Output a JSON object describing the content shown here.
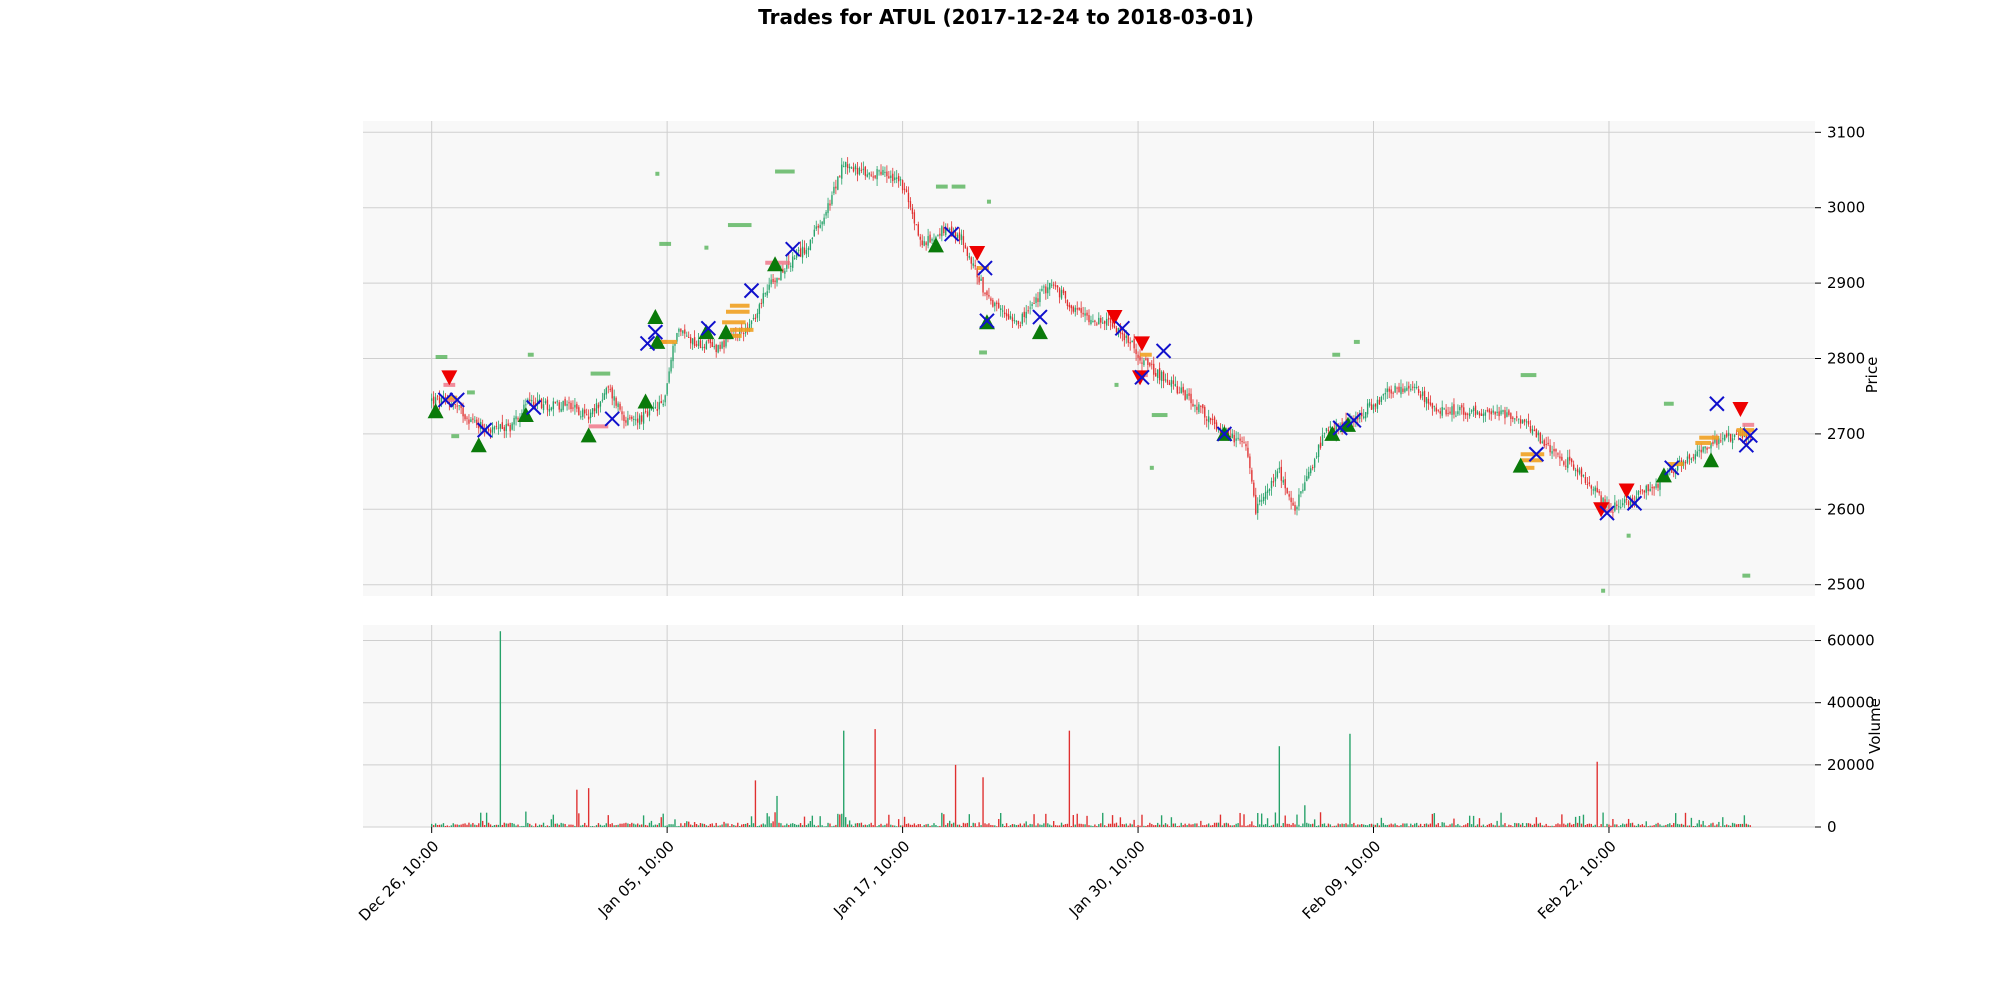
{
  "chart_data": {
    "type": "candlestick",
    "title": "Trades for ATUL (2017-12-24 to 2018-03-01)",
    "price_axis": {
      "label": "Price",
      "side": "right",
      "ylim": [
        2485,
        3115
      ],
      "ticks": [
        2500,
        2600,
        2700,
        2800,
        2900,
        3000,
        3100
      ]
    },
    "volume_axis": {
      "label": "Volume",
      "side": "right",
      "ylim": [
        0,
        65000
      ],
      "ticks": [
        0,
        20000,
        40000,
        60000
      ],
      "tick_labels": [
        "0",
        "20000",
        "40000",
        "60000"
      ]
    },
    "x_ticks": [
      {
        "label": "Dec 26, 10:00",
        "index": 0
      },
      {
        "label": "Jan 05, 10:00",
        "index": 120
      },
      {
        "label": "Jan 17, 10:00",
        "index": 240
      },
      {
        "label": "Jan 30, 10:00",
        "index": 360
      },
      {
        "label": "Feb 09, 10:00",
        "index": 480
      },
      {
        "label": "Feb 22, 10:00",
        "index": 600
      }
    ],
    "x_range": [
      -35,
      705
    ],
    "grid": true,
    "colors": {
      "up": "#26a269",
      "down": "#e03030",
      "buy_marker": "#0a7a0a",
      "sell_marker": "#ee0000",
      "exit_marker": "#1010cc",
      "background": "#f8f8f8",
      "grid": "#cfcfcf",
      "orange_level": "#f0a020",
      "pink_level": "#f08090",
      "green_level": "#4caf50"
    },
    "price_anchors": [
      [
        0,
        2745
      ],
      [
        10,
        2742
      ],
      [
        20,
        2718
      ],
      [
        30,
        2705
      ],
      [
        40,
        2710
      ],
      [
        50,
        2745
      ],
      [
        60,
        2738
      ],
      [
        70,
        2740
      ],
      [
        80,
        2720
      ],
      [
        90,
        2760
      ],
      [
        100,
        2715
      ],
      [
        110,
        2725
      ],
      [
        118,
        2740
      ],
      [
        125,
        2840
      ],
      [
        135,
        2820
      ],
      [
        145,
        2815
      ],
      [
        155,
        2830
      ],
      [
        165,
        2850
      ],
      [
        170,
        2890
      ],
      [
        180,
        2920
      ],
      [
        190,
        2945
      ],
      [
        200,
        2985
      ],
      [
        210,
        3060
      ],
      [
        220,
        3045
      ],
      [
        230,
        3045
      ],
      [
        240,
        3030
      ],
      [
        250,
        2950
      ],
      [
        260,
        2970
      ],
      [
        270,
        2960
      ],
      [
        285,
        2870
      ],
      [
        300,
        2850
      ],
      [
        315,
        2900
      ],
      [
        330,
        2860
      ],
      [
        350,
        2840
      ],
      [
        365,
        2790
      ],
      [
        380,
        2760
      ],
      [
        400,
        2710
      ],
      [
        415,
        2680
      ],
      [
        420,
        2600
      ],
      [
        432,
        2650
      ],
      [
        440,
        2600
      ],
      [
        455,
        2700
      ],
      [
        470,
        2720
      ],
      [
        480,
        2740
      ],
      [
        490,
        2760
      ],
      [
        500,
        2760
      ],
      [
        515,
        2730
      ],
      [
        535,
        2730
      ],
      [
        555,
        2720
      ],
      [
        570,
        2680
      ],
      [
        585,
        2650
      ],
      [
        600,
        2600
      ],
      [
        610,
        2610
      ],
      [
        625,
        2635
      ],
      [
        640,
        2670
      ],
      [
        655,
        2690
      ],
      [
        668,
        2700
      ],
      [
        672,
        2690
      ]
    ],
    "volume_spikes": [
      [
        35,
        63000
      ],
      [
        210,
        31000
      ],
      [
        226,
        31500
      ],
      [
        267,
        20000
      ],
      [
        281,
        16000
      ],
      [
        325,
        31000
      ],
      [
        432,
        26000
      ],
      [
        468,
        30000
      ],
      [
        594,
        21000
      ],
      [
        74,
        12000
      ],
      [
        80,
        12500
      ],
      [
        165,
        15000
      ],
      [
        176,
        10000
      ],
      [
        445,
        7000
      ]
    ],
    "buy_markers": [
      [
        2,
        2730
      ],
      [
        24,
        2685
      ],
      [
        48,
        2725
      ],
      [
        80,
        2698
      ],
      [
        109,
        2743
      ],
      [
        114,
        2855
      ],
      [
        115,
        2822
      ],
      [
        140,
        2835
      ],
      [
        150,
        2835
      ],
      [
        175,
        2925
      ],
      [
        257,
        2950
      ],
      [
        283,
        2848
      ],
      [
        310,
        2835
      ],
      [
        404,
        2700
      ],
      [
        459,
        2700
      ],
      [
        467,
        2712
      ],
      [
        555,
        2658
      ],
      [
        628,
        2645
      ],
      [
        652,
        2665
      ]
    ],
    "sell_markers": [
      [
        9,
        2775
      ],
      [
        278,
        2940
      ],
      [
        348,
        2855
      ],
      [
        362,
        2820
      ],
      [
        361,
        2775
      ],
      [
        596,
        2600
      ],
      [
        609,
        2625
      ],
      [
        667,
        2733
      ]
    ],
    "exit_markers": [
      [
        7,
        2745
      ],
      [
        13,
        2745
      ],
      [
        27,
        2705
      ],
      [
        52,
        2735
      ],
      [
        92,
        2720
      ],
      [
        110,
        2820
      ],
      [
        114,
        2835
      ],
      [
        141,
        2840
      ],
      [
        163,
        2890
      ],
      [
        184,
        2945
      ],
      [
        265,
        2965
      ],
      [
        282,
        2920
      ],
      [
        283,
        2850
      ],
      [
        310,
        2855
      ],
      [
        352,
        2840
      ],
      [
        362,
        2775
      ],
      [
        373,
        2810
      ],
      [
        404,
        2700
      ],
      [
        463,
        2708
      ],
      [
        470,
        2718
      ],
      [
        563,
        2673
      ],
      [
        599,
        2595
      ],
      [
        613,
        2608
      ],
      [
        632,
        2655
      ],
      [
        655,
        2740
      ],
      [
        670,
        2685
      ],
      [
        672,
        2698
      ]
    ],
    "level_segments": [
      [
        "green",
        2,
        8,
        2802
      ],
      [
        "green",
        10,
        14,
        2697
      ],
      [
        "green",
        18,
        22,
        2755
      ],
      [
        "green",
        49,
        52,
        2805
      ],
      [
        "green",
        81,
        91,
        2780
      ],
      [
        "green",
        114,
        115,
        3045
      ],
      [
        "green",
        116,
        122,
        2952
      ],
      [
        "green",
        139,
        141,
        2947
      ],
      [
        "green",
        151,
        163,
        2977
      ],
      [
        "green",
        175,
        185,
        3048
      ],
      [
        "green",
        257,
        263,
        3028
      ],
      [
        "green",
        279,
        283,
        2808
      ],
      [
        "green",
        348,
        350,
        2765
      ],
      [
        "green",
        367,
        375,
        2725
      ],
      [
        "green",
        366,
        367,
        2655
      ],
      [
        "green",
        459,
        463,
        2805
      ],
      [
        "green",
        470,
        473,
        2822
      ],
      [
        "green",
        555,
        563,
        2778
      ],
      [
        "green",
        596,
        597,
        2492
      ],
      [
        "green",
        609,
        610,
        2565
      ],
      [
        "green",
        628,
        633,
        2740
      ],
      [
        "green",
        668,
        672,
        2512
      ],
      [
        "green",
        283,
        284,
        3008
      ],
      [
        "green",
        265,
        272,
        3028
      ],
      [
        "pink",
        6,
        12,
        2765
      ],
      [
        "pink",
        6,
        12,
        2745
      ],
      [
        "pink",
        80,
        90,
        2710
      ],
      [
        "pink",
        114,
        120,
        2822
      ],
      [
        "pink",
        170,
        182,
        2927
      ],
      [
        "pink",
        360,
        365,
        2778
      ],
      [
        "pink",
        596,
        602,
        2598
      ],
      [
        "pink",
        668,
        674,
        2712
      ],
      [
        "orange",
        8,
        13,
        2748
      ],
      [
        "orange",
        113,
        125,
        2822
      ],
      [
        "orange",
        148,
        160,
        2848
      ],
      [
        "orange",
        150,
        162,
        2862
      ],
      [
        "orange",
        152,
        164,
        2838
      ],
      [
        "orange",
        148,
        158,
        2830
      ],
      [
        "orange",
        152,
        162,
        2870
      ],
      [
        "orange",
        278,
        284,
        2920
      ],
      [
        "orange",
        361,
        367,
        2805
      ],
      [
        "orange",
        555,
        566,
        2665
      ],
      [
        "orange",
        553,
        562,
        2655
      ],
      [
        "orange",
        555,
        567,
        2673
      ],
      [
        "orange",
        630,
        638,
        2660
      ],
      [
        "orange",
        646,
        656,
        2695
      ],
      [
        "orange",
        644,
        652,
        2688
      ],
      [
        "orange",
        665,
        674,
        2705
      ],
      [
        "orange",
        666,
        672,
        2700
      ]
    ]
  }
}
